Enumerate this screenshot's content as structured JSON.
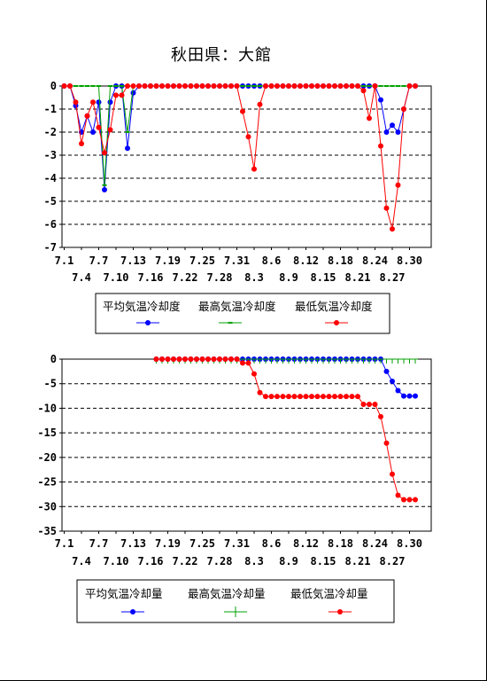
{
  "title": "秋田県：大館",
  "colors": {
    "avg": "#0000ff",
    "max": "#00a000",
    "min": "#ff0000",
    "grid": "#000000",
    "axis": "#000000"
  },
  "chart_data": [
    {
      "type": "line",
      "x_labels_row1": [
        "7.1",
        "7.7",
        "7.13",
        "7.19",
        "7.25",
        "7.31",
        "8.6",
        "8.12",
        "8.18",
        "8.24",
        "8.30"
      ],
      "x_labels_row2": [
        "7.4",
        "7.10",
        "7.16",
        "7.22",
        "7.28",
        "8.3",
        "8.9",
        "8.15",
        "8.21",
        "8.27"
      ],
      "ylim": [
        -7,
        0
      ],
      "y_ticks": [
        0,
        -1,
        -2,
        -3,
        -4,
        -5,
        -6,
        -7
      ],
      "grid": "dashed",
      "series": [
        {
          "name": "平均気温冷却度",
          "key": "avg",
          "marker": "dot",
          "values": [
            0,
            0,
            -0.85,
            -2.0,
            -1.3,
            -2.0,
            -0.7,
            -4.5,
            -0.7,
            0,
            0,
            -2.7,
            -0.3,
            0,
            0,
            0,
            0,
            0,
            0,
            0,
            0,
            0,
            0,
            0,
            0,
            0,
            0,
            0,
            0,
            0,
            0,
            0,
            0,
            0,
            0,
            0,
            0,
            0,
            0,
            0,
            0,
            0,
            0,
            0,
            0,
            0,
            0,
            0,
            0,
            0,
            0,
            0,
            0,
            0,
            0,
            -0.6,
            -2.0,
            -1.7,
            -2.0,
            -1.0,
            0,
            0
          ]
        },
        {
          "name": "最高気温冷却度",
          "key": "max",
          "marker": "dash",
          "values": [
            0,
            0,
            0,
            0,
            0,
            0,
            0,
            -4.3,
            0,
            0,
            0,
            -2.0,
            0,
            0,
            0,
            0,
            0,
            0,
            0,
            0,
            0,
            0,
            0,
            0,
            0,
            0,
            0,
            0,
            0,
            0,
            0,
            0,
            0,
            0,
            0,
            0,
            0,
            0,
            0,
            0,
            0,
            0,
            0,
            0,
            0,
            0,
            0,
            0,
            0,
            0,
            0,
            0,
            0,
            0,
            0,
            0,
            0,
            0,
            0,
            0,
            0,
            0
          ]
        },
        {
          "name": "最低気温冷却度",
          "key": "min",
          "marker": "dot",
          "values": [
            0,
            0,
            -0.7,
            -2.5,
            -1.3,
            -0.7,
            -1.8,
            -2.9,
            -1.9,
            -0.4,
            -0.4,
            0,
            0,
            0,
            0,
            0,
            0,
            0,
            0,
            0,
            0,
            0,
            0,
            0,
            0,
            0,
            0,
            0,
            0,
            0,
            0,
            -1.1,
            -2.2,
            -3.6,
            -0.8,
            0,
            0,
            0,
            0,
            0,
            0,
            0,
            0,
            0,
            0,
            0,
            0,
            0,
            0,
            0,
            0,
            0,
            -0.2,
            -1.4,
            0,
            -2.6,
            -5.3,
            -6.2,
            -4.3,
            -1.0,
            0,
            0
          ]
        }
      ]
    },
    {
      "type": "line",
      "x_labels_row1": [
        "7.1",
        "7.7",
        "7.13",
        "7.19",
        "7.25",
        "7.31",
        "8.6",
        "8.12",
        "8.18",
        "8.24",
        "8.30"
      ],
      "x_labels_row2": [
        "7.4",
        "7.10",
        "7.16",
        "7.22",
        "7.28",
        "8.3",
        "8.9",
        "8.15",
        "8.21",
        "8.27"
      ],
      "ylim": [
        -35,
        0
      ],
      "y_ticks": [
        0,
        -5,
        -10,
        -15,
        -20,
        -25,
        -30,
        -35
      ],
      "grid": "dashed",
      "series": [
        {
          "name": "平均気温冷却量",
          "key": "avg",
          "marker": "dot",
          "values": [
            null,
            null,
            null,
            null,
            null,
            null,
            null,
            null,
            null,
            null,
            null,
            null,
            null,
            null,
            null,
            null,
            0,
            0,
            0,
            0,
            0,
            0,
            0,
            0,
            0,
            0,
            0,
            0,
            0,
            0,
            0,
            0,
            0,
            0,
            0,
            0,
            0,
            0,
            0,
            0,
            0,
            0,
            0,
            0,
            0,
            0,
            0,
            0,
            0,
            0,
            0,
            0,
            0,
            0,
            0,
            0,
            -2.5,
            -4.5,
            -6.4,
            -7.5,
            -7.5,
            -7.5
          ]
        },
        {
          "name": "最高気温冷却量",
          "key": "max",
          "marker": "plus",
          "values": [
            null,
            null,
            null,
            null,
            null,
            null,
            null,
            null,
            null,
            null,
            null,
            null,
            null,
            null,
            null,
            null,
            0,
            0,
            0,
            0,
            0,
            0,
            0,
            0,
            0,
            0,
            0,
            0,
            0,
            0,
            0,
            0,
            0,
            0,
            0,
            0,
            0,
            0,
            0,
            0,
            0,
            0,
            0,
            0,
            0,
            0,
            0,
            0,
            0,
            0,
            0,
            0,
            0,
            0,
            0,
            0,
            0,
            0,
            0,
            0,
            0,
            0
          ]
        },
        {
          "name": "最低気温冷却量",
          "key": "min",
          "marker": "dot",
          "values": [
            null,
            null,
            null,
            null,
            null,
            null,
            null,
            null,
            null,
            null,
            null,
            null,
            null,
            null,
            null,
            null,
            0,
            0,
            0,
            0,
            0,
            0,
            0,
            0,
            0,
            0,
            0,
            0,
            0,
            0,
            0,
            -0.8,
            -0.8,
            -3.0,
            -6.8,
            -7.6,
            -7.6,
            -7.6,
            -7.6,
            -7.6,
            -7.6,
            -7.6,
            -7.6,
            -7.6,
            -7.6,
            -7.6,
            -7.6,
            -7.6,
            -7.6,
            -7.6,
            -7.6,
            -7.6,
            -9.2,
            -9.2,
            -9.2,
            -11.7,
            -17.1,
            -23.4,
            -27.7,
            -28.6,
            -28.6,
            -28.6
          ]
        }
      ]
    }
  ]
}
